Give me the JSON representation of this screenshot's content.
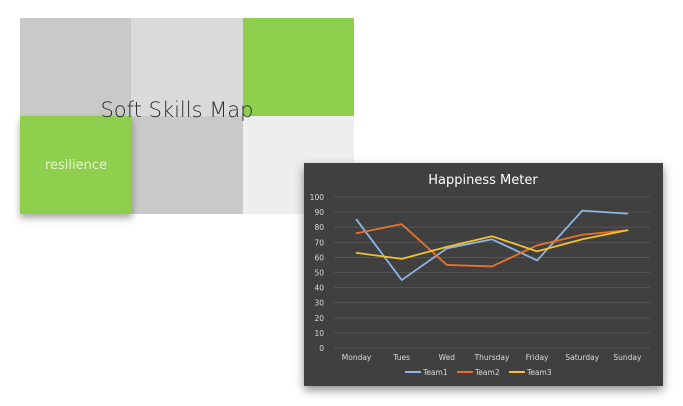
{
  "slide": {
    "title": "Soft Skills Map",
    "highlight_label": "resilience",
    "colors": {
      "accent": "#8ecf4d",
      "tile_mid": "#c9c9c9",
      "tile_light": "#dadada",
      "tile_pale": "#eeeeee"
    }
  },
  "chart_data": {
    "type": "line",
    "title": "Happiness Meter",
    "xlabel": "",
    "ylabel": "",
    "categories": [
      "Monday",
      "Tues",
      "Wed",
      "Thursday",
      "Friday",
      "Saturday",
      "Sunday"
    ],
    "ylim": [
      0,
      100
    ],
    "yticks": [
      0,
      10,
      20,
      30,
      40,
      50,
      60,
      70,
      80,
      90,
      100
    ],
    "grid": true,
    "legend": "bottom",
    "background": "#404040",
    "series": [
      {
        "name": "Team1",
        "color": "#8fb4e0",
        "values": [
          85,
          45,
          66,
          72,
          58,
          91,
          89
        ]
      },
      {
        "name": "Team2",
        "color": "#e8712c",
        "values": [
          76,
          82,
          55,
          54,
          68,
          75,
          78
        ]
      },
      {
        "name": "Team3",
        "color": "#f2c12e",
        "values": [
          63,
          59,
          67,
          74,
          64,
          72,
          78
        ]
      }
    ]
  }
}
